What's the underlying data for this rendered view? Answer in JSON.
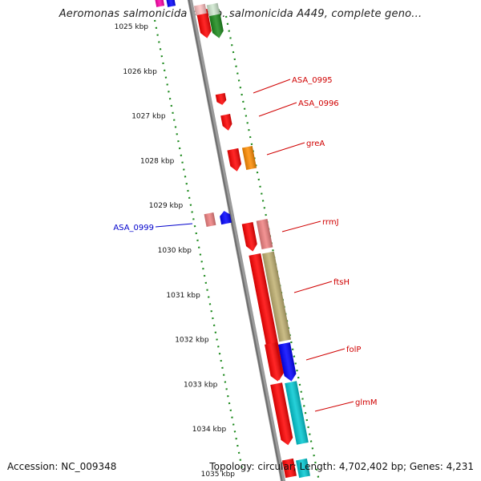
{
  "title": "Aeromonas salmonicida subsp. salmonicida A449, complete geno...",
  "footer": {
    "accession": "Accession: NC_009348",
    "topology": "Topology: circular; Length: 4,702,402 bp; Genes: 4,231"
  },
  "colors": {
    "backbone": "#808080",
    "tick": "#1e8a1e",
    "label_forward": "#d00000",
    "label_reverse": "#0000cc"
  },
  "ruler": {
    "labels": [
      "1025 kbp",
      "1026 kbp",
      "1027 kbp",
      "1028 kbp",
      "1029 kbp",
      "1030 kbp",
      "1031 kbp",
      "1032 kbp",
      "1033 kbp",
      "1034 kbp",
      "1035 kbp"
    ]
  },
  "features": [
    {
      "name": "ASA_0995",
      "strand": "+",
      "color": "#ff0000",
      "labeled": true
    },
    {
      "name": "ASA_0996",
      "strand": "+",
      "color": "#ff0000",
      "labeled": true
    },
    {
      "name": "greA",
      "strand": "+",
      "color": "#ff0000",
      "labeled": true
    },
    {
      "name": "ASA_0999",
      "strand": "-",
      "color": "#0000ff",
      "labeled": true
    },
    {
      "name": "rrmJ",
      "strand": "+",
      "color": "#ff0000",
      "labeled": true
    },
    {
      "name": "ftsH",
      "strand": "+",
      "color": "#ff0000",
      "labeled": true
    },
    {
      "name": "folP",
      "strand": "+",
      "color": "#ff0000",
      "labeled": true
    },
    {
      "name": "glmM",
      "strand": "+",
      "color": "#ff0000",
      "labeled": true
    }
  ]
}
